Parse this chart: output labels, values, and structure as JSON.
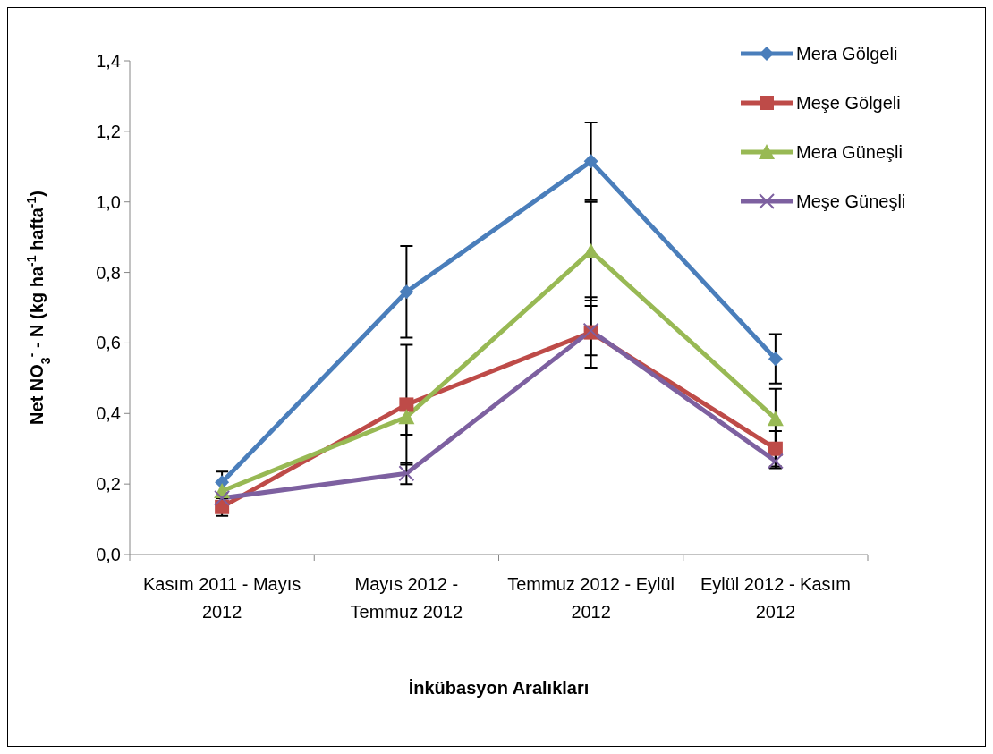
{
  "chart_data": {
    "type": "line",
    "xlabel": "İnkübasyon Aralıkları",
    "ylabel": "Net NO$_{3}$$^{-}$ - N (kg ha$^{-1}$ hafta$^{-1}$)",
    "categories": [
      "Kasım 2011 - Mayıs 2012",
      "Mayıs 2012 - Temmuz 2012",
      "Temmuz 2012 - Eylül 2012",
      "Eylül 2012 - Kasım 2012"
    ],
    "series": [
      {
        "name": "Mera Gölgeli",
        "color": "#4a7ebb",
        "marker": "diamond",
        "values": [
          0.205,
          0.745,
          1.115,
          0.555
        ],
        "errors": [
          0.03,
          0.13,
          0.11,
          0.07
        ]
      },
      {
        "name": "Meşe Gölgeli",
        "color": "#be4b48",
        "marker": "square",
        "values": [
          0.135,
          0.425,
          0.63,
          0.3
        ],
        "errors": [
          0.025,
          0.17,
          0.1,
          0.05
        ]
      },
      {
        "name": "Mera Güneşli",
        "color": "#98b954",
        "marker": "triangle",
        "values": [
          0.18,
          0.39,
          0.86,
          0.385
        ],
        "errors": [
          null,
          0.05,
          0.14,
          0.085
        ]
      },
      {
        "name": "Meşe Güneşli",
        "color": "#7d60a0",
        "marker": "cross",
        "values": [
          0.16,
          0.23,
          0.635,
          0.265
        ],
        "errors": [
          null,
          0.03,
          0.07,
          0.02
        ]
      }
    ],
    "ylim": [
      0,
      1.4
    ],
    "yticks": [
      {
        "value": 0,
        "label": "0,0"
      },
      {
        "value": 0.2,
        "label": "0,2"
      },
      {
        "value": 0.4,
        "label": "0,4"
      },
      {
        "value": 0.6,
        "label": "0,6"
      },
      {
        "value": 0.8,
        "label": "0,8"
      },
      {
        "value": 1,
        "label": "1,0"
      },
      {
        "value": 1.2,
        "label": "1,2"
      },
      {
        "value": 1.4,
        "label": "1,4"
      }
    ],
    "legend": "right",
    "line_style": "solid"
  }
}
